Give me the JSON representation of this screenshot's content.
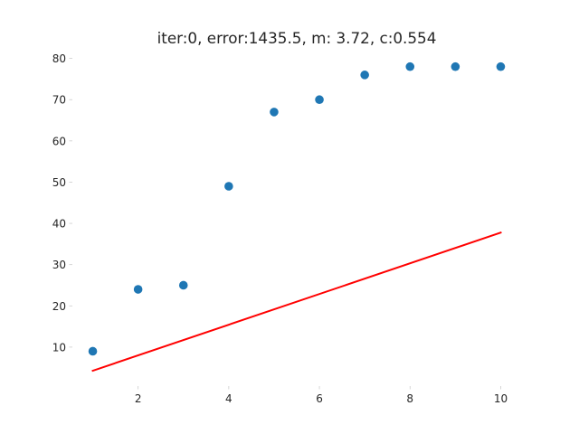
{
  "chart_data": {
    "type": "scatter",
    "title": "iter:0, error:1435.5, m: 3.72, c:0.554",
    "xlabel": "",
    "ylabel": "",
    "xlim": [
      0.55,
      10.45
    ],
    "ylim": [
      0.55,
      81.45
    ],
    "xticks": [
      2,
      4,
      6,
      8,
      10
    ],
    "yticks": [
      10,
      20,
      30,
      40,
      50,
      60,
      70,
      80
    ],
    "grid": false,
    "points": {
      "x": [
        1,
        2,
        3,
        4,
        5,
        6,
        7,
        8,
        9,
        10
      ],
      "y": [
        9,
        24,
        25,
        49,
        67,
        70,
        76,
        78,
        78,
        78
      ],
      "color": "#1f77b4"
    },
    "fit_line": {
      "m": 3.72,
      "c": 0.554,
      "x_range": [
        1,
        10
      ],
      "color": "#ff0000"
    }
  }
}
